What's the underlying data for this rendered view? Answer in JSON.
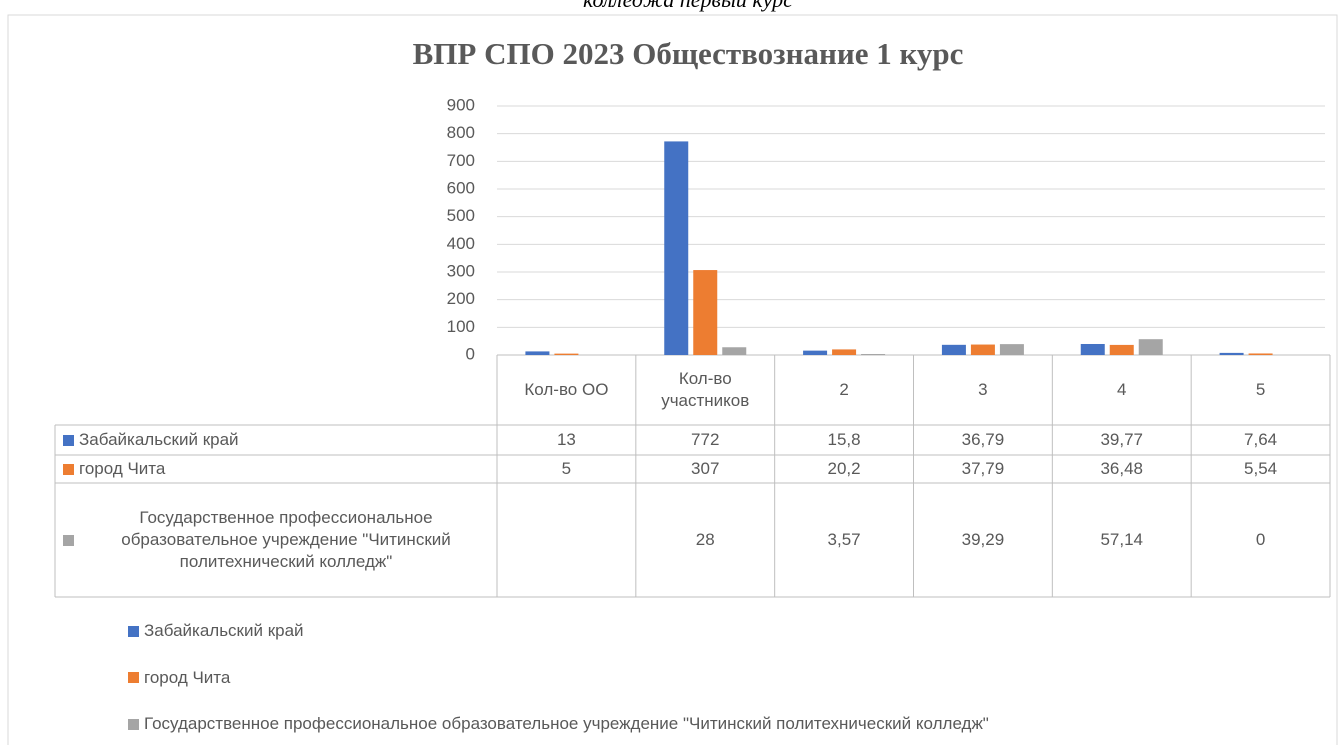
{
  "chart_data": {
    "type": "bar",
    "subtitle": "колледжа первый курс",
    "title": "ВПР СПО 2023 Обществознание 1 курс",
    "categories": [
      "Кол-во ОО",
      "Кол-во участников",
      "2",
      "3",
      "4",
      "5"
    ],
    "series": [
      {
        "name": "Забайкальский край",
        "color": "#4472c4",
        "values": [
          13,
          772,
          15.8,
          36.79,
          39.77,
          7.64
        ],
        "value_labels": [
          "13",
          "772",
          "15,8",
          "36,79",
          "39,77",
          "7,64"
        ]
      },
      {
        "name": "город Чита",
        "color": "#ed7d31",
        "values": [
          5,
          307,
          20.2,
          37.79,
          36.48,
          5.54
        ],
        "value_labels": [
          "5",
          "307",
          "20,2",
          "37,79",
          "36,48",
          "5,54"
        ]
      },
      {
        "name": "Государственное профессиональное образовательное учреждение \"Читинский политехнический колледж\"",
        "color": "#a5a5a5",
        "values": [
          null,
          28,
          3.57,
          39.29,
          57.14,
          0
        ],
        "value_labels": [
          null,
          "28",
          "3,57",
          "39,29",
          "57,14",
          "0"
        ]
      }
    ],
    "ylim": [
      0,
      900
    ],
    "yticks": [
      0,
      100,
      200,
      300,
      400,
      500,
      600,
      700,
      800,
      900
    ],
    "grid": true
  }
}
